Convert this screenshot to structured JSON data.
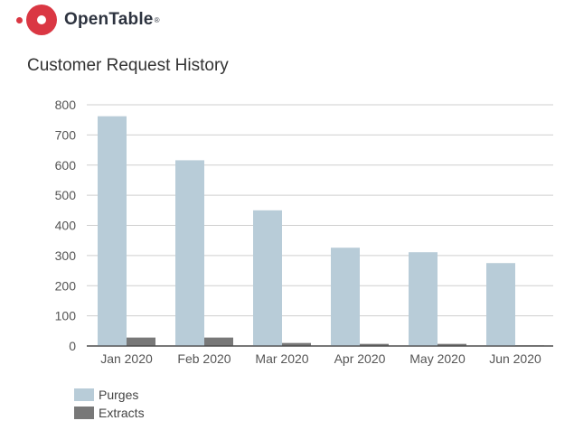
{
  "brand": {
    "name": "OpenTable",
    "registered_mark": "®",
    "color": "#da3743"
  },
  "chart_data": {
    "type": "bar",
    "title": "Customer Request History",
    "xlabel": "",
    "ylabel": "",
    "categories": [
      "Jan 2020",
      "Feb 2020",
      "Mar 2020",
      "Apr 2020",
      "May 2020",
      "Jun 2020"
    ],
    "series": [
      {
        "name": "Purges",
        "color": "#b8ccd8",
        "values": [
          762,
          616,
          450,
          326,
          311,
          275
        ]
      },
      {
        "name": "Extracts",
        "color": "#787878",
        "values": [
          28,
          28,
          10,
          7,
          7,
          2
        ]
      }
    ],
    "ylim": [
      0,
      800
    ],
    "yticks": [
      "0",
      "100",
      "200",
      "300",
      "400",
      "500",
      "600",
      "700",
      "800"
    ],
    "grid": true,
    "legend_position": "bottom-left"
  }
}
